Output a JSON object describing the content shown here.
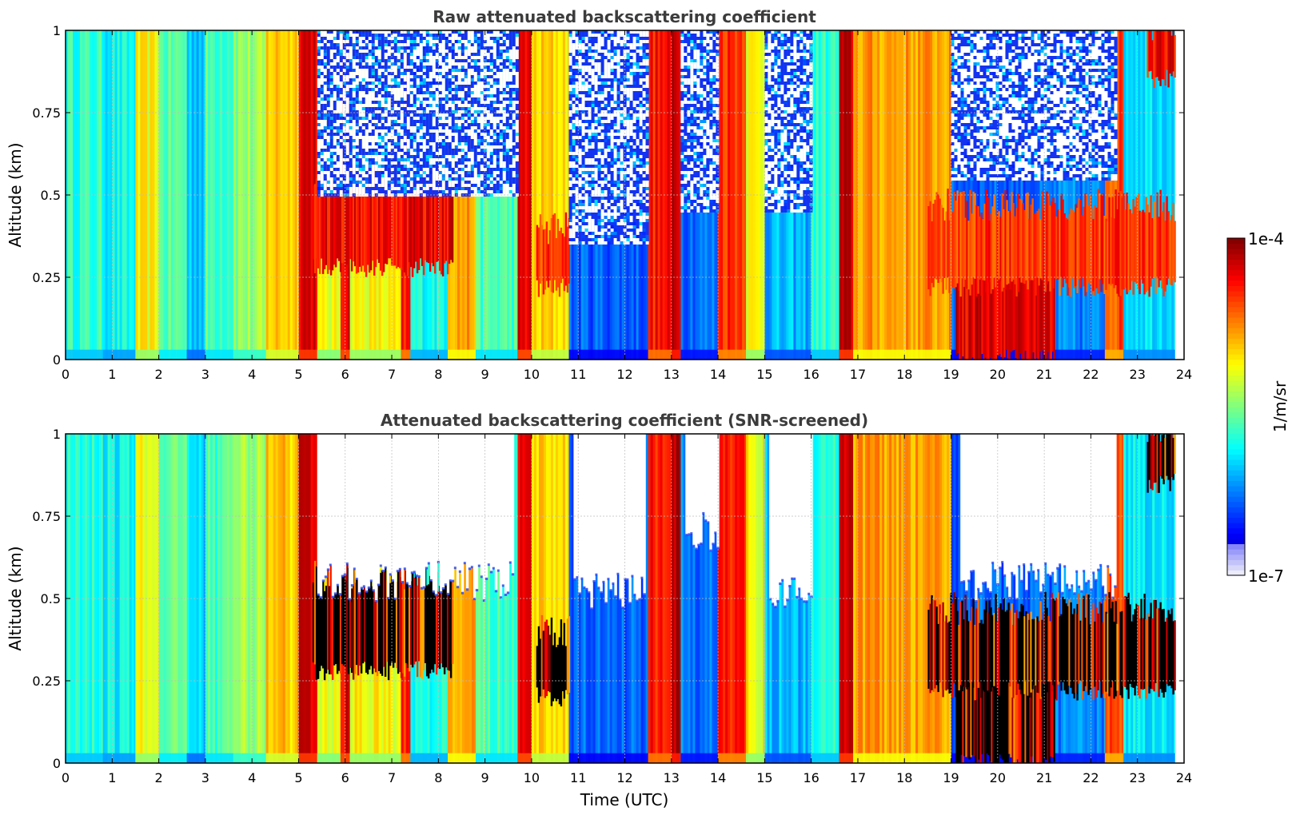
{
  "chart_data": [
    {
      "type": "heatmap",
      "title": "Raw attenuated backscattering coefficient",
      "xlabel": "",
      "ylabel": "Altitude (km)",
      "xlim": [
        0,
        24
      ],
      "ylim": [
        0,
        1
      ],
      "xticks": [
        "0",
        "1",
        "2",
        "3",
        "4",
        "5",
        "6",
        "7",
        "8",
        "9",
        "10",
        "11",
        "12",
        "13",
        "14",
        "15",
        "16",
        "17",
        "18",
        "19",
        "20",
        "21",
        "22",
        "23",
        "24"
      ],
      "yticks": [
        "0",
        "0.25",
        "0.5",
        "0.75",
        "1"
      ],
      "grid": true,
      "screened": false,
      "columns": [
        {
          "t0": 0.0,
          "t1": 0.8,
          "level": 0.42
        },
        {
          "t0": 0.8,
          "t1": 1.5,
          "level": 0.38
        },
        {
          "t0": 1.5,
          "t1": 2.0,
          "level": 0.62
        },
        {
          "t0": 2.0,
          "t1": 2.6,
          "level": 0.46
        },
        {
          "t0": 2.6,
          "t1": 3.0,
          "level": 0.33
        },
        {
          "t0": 3.0,
          "t1": 3.6,
          "level": 0.45
        },
        {
          "t0": 3.6,
          "t1": 4.3,
          "level": 0.52
        },
        {
          "t0": 4.3,
          "t1": 5.0,
          "level": 0.68
        },
        {
          "t0": 5.0,
          "t1": 5.4,
          "level": 0.92
        },
        {
          "t0": 5.4,
          "t1": 5.9,
          "level": 0.6
        },
        {
          "t0": 5.9,
          "t1": 6.1,
          "level": 0.9
        },
        {
          "t0": 6.1,
          "t1": 7.2,
          "level": 0.62
        },
        {
          "t0": 7.2,
          "t1": 7.4,
          "level": 0.85
        },
        {
          "t0": 7.4,
          "t1": 8.2,
          "level": 0.4
        },
        {
          "t0": 8.2,
          "t1": 8.8,
          "level": 0.72
        },
        {
          "t0": 8.8,
          "t1": 9.7,
          "level": 0.45
        },
        {
          "t0": 9.7,
          "t1": 10.0,
          "level": 0.9
        },
        {
          "t0": 10.0,
          "t1": 10.8,
          "level": 0.66
        },
        {
          "t0": 10.8,
          "t1": 12.5,
          "level": 0.22
        },
        {
          "t0": 12.5,
          "t1": 13.0,
          "level": 0.86
        },
        {
          "t0": 13.0,
          "t1": 13.2,
          "level": 0.95
        },
        {
          "t0": 13.2,
          "t1": 14.0,
          "level": 0.24
        },
        {
          "t0": 14.0,
          "t1": 14.6,
          "level": 0.84
        },
        {
          "t0": 14.6,
          "t1": 15.0,
          "level": 0.62
        },
        {
          "t0": 15.0,
          "t1": 16.0,
          "level": 0.3
        },
        {
          "t0": 16.0,
          "t1": 16.6,
          "level": 0.42
        },
        {
          "t0": 16.6,
          "t1": 16.9,
          "level": 0.92
        },
        {
          "t0": 16.9,
          "t1": 19.0,
          "level": 0.72
        },
        {
          "t0": 19.0,
          "t1": 21.2,
          "level": 0.22
        },
        {
          "t0": 21.2,
          "t1": 22.3,
          "level": 0.25
        },
        {
          "t0": 22.3,
          "t1": 22.7,
          "level": 0.8
        },
        {
          "t0": 22.7,
          "t1": 23.8,
          "level": 0.36
        }
      ],
      "layers": [
        {
          "t0": 5.3,
          "t1": 8.3,
          "z0": 0.28,
          "z1": 0.55,
          "level": 0.96
        },
        {
          "t0": 10.1,
          "t1": 10.8,
          "z0": 0.22,
          "z1": 0.38,
          "level": 0.9
        },
        {
          "t0": 19.1,
          "t1": 21.2,
          "z0": 0.0,
          "z1": 0.36,
          "level": 0.98
        },
        {
          "t0": 18.5,
          "t1": 23.8,
          "z0": 0.22,
          "z1": 0.45,
          "level": 0.9
        },
        {
          "t0": 23.2,
          "t1": 23.8,
          "z0": 0.85,
          "z1": 1.0,
          "level": 0.95
        }
      ],
      "noise_regions": [
        {
          "t0": 5.4,
          "t1": 9.7,
          "z0": 0.5,
          "z1": 1.0
        },
        {
          "t0": 10.8,
          "t1": 12.5,
          "z0": 0.35,
          "z1": 1.0
        },
        {
          "t0": 13.2,
          "t1": 14.0,
          "z0": 0.45,
          "z1": 1.0
        },
        {
          "t0": 15.0,
          "t1": 16.0,
          "z0": 0.45,
          "z1": 1.0
        },
        {
          "t0": 19.0,
          "t1": 22.5,
          "z0": 0.55,
          "z1": 1.0
        }
      ]
    },
    {
      "type": "heatmap",
      "title": "Attenuated backscattering coefficient (SNR-screened)",
      "xlabel": "Time (UTC)",
      "ylabel": "Altitude (km)",
      "xlim": [
        0,
        24
      ],
      "ylim": [
        0,
        1
      ],
      "xticks": [
        "0",
        "1",
        "2",
        "3",
        "4",
        "5",
        "6",
        "7",
        "8",
        "9",
        "10",
        "11",
        "12",
        "13",
        "14",
        "15",
        "16",
        "17",
        "18",
        "19",
        "20",
        "21",
        "22",
        "23",
        "24"
      ],
      "yticks": [
        "0",
        "0.25",
        "0.5",
        "0.75",
        "1"
      ],
      "grid": true,
      "screened": true,
      "columns": [
        {
          "t0": 0.0,
          "t1": 0.8,
          "level": 0.42
        },
        {
          "t0": 0.8,
          "t1": 1.5,
          "level": 0.38
        },
        {
          "t0": 1.5,
          "t1": 2.0,
          "level": 0.62
        },
        {
          "t0": 2.0,
          "t1": 2.6,
          "level": 0.46
        },
        {
          "t0": 2.6,
          "t1": 3.0,
          "level": 0.33
        },
        {
          "t0": 3.0,
          "t1": 3.6,
          "level": 0.45
        },
        {
          "t0": 3.6,
          "t1": 4.3,
          "level": 0.52
        },
        {
          "t0": 4.3,
          "t1": 5.0,
          "level": 0.68
        },
        {
          "t0": 5.0,
          "t1": 5.4,
          "level": 0.92
        },
        {
          "t0": 5.4,
          "t1": 5.9,
          "level": 0.6
        },
        {
          "t0": 5.9,
          "t1": 6.1,
          "level": 0.9
        },
        {
          "t0": 6.1,
          "t1": 7.2,
          "level": 0.62
        },
        {
          "t0": 7.2,
          "t1": 7.4,
          "level": 0.85
        },
        {
          "t0": 7.4,
          "t1": 8.2,
          "level": 0.4
        },
        {
          "t0": 8.2,
          "t1": 8.8,
          "level": 0.72
        },
        {
          "t0": 8.8,
          "t1": 9.7,
          "level": 0.45
        },
        {
          "t0": 9.7,
          "t1": 10.0,
          "level": 0.9
        },
        {
          "t0": 10.0,
          "t1": 10.8,
          "level": 0.66
        },
        {
          "t0": 10.8,
          "t1": 12.5,
          "level": 0.22
        },
        {
          "t0": 12.5,
          "t1": 13.0,
          "level": 0.86
        },
        {
          "t0": 13.0,
          "t1": 13.2,
          "level": 0.95
        },
        {
          "t0": 13.2,
          "t1": 14.0,
          "level": 0.24
        },
        {
          "t0": 14.0,
          "t1": 14.6,
          "level": 0.84
        },
        {
          "t0": 14.6,
          "t1": 15.0,
          "level": 0.62
        },
        {
          "t0": 15.0,
          "t1": 16.0,
          "level": 0.3
        },
        {
          "t0": 16.0,
          "t1": 16.6,
          "level": 0.42
        },
        {
          "t0": 16.6,
          "t1": 16.9,
          "level": 0.92
        },
        {
          "t0": 16.9,
          "t1": 19.0,
          "level": 0.72
        },
        {
          "t0": 19.0,
          "t1": 21.2,
          "level": 0.22
        },
        {
          "t0": 21.2,
          "t1": 22.3,
          "level": 0.25
        },
        {
          "t0": 22.3,
          "t1": 22.7,
          "level": 0.8
        },
        {
          "t0": 22.7,
          "t1": 23.8,
          "level": 0.36
        }
      ],
      "layers": [
        {
          "t0": 5.3,
          "t1": 8.3,
          "z0": 0.28,
          "z1": 0.55,
          "level": 1.0
        },
        {
          "t0": 10.1,
          "t1": 10.8,
          "z0": 0.2,
          "z1": 0.38,
          "level": 1.0
        },
        {
          "t0": 19.1,
          "t1": 21.2,
          "z0": 0.0,
          "z1": 0.36,
          "level": 1.0
        },
        {
          "t0": 18.5,
          "t1": 23.8,
          "z0": 0.22,
          "z1": 0.45,
          "level": 1.0
        },
        {
          "t0": 23.2,
          "t1": 23.8,
          "z0": 0.85,
          "z1": 1.0,
          "level": 1.0
        }
      ],
      "screened_regions": [
        {
          "t0": 5.4,
          "t1": 9.6,
          "z0": 0.55,
          "z1": 1.0
        },
        {
          "t0": 10.9,
          "t1": 12.4,
          "z0": 0.52,
          "z1": 1.0
        },
        {
          "t0": 13.3,
          "t1": 14.0,
          "z0": 0.7,
          "z1": 1.0
        },
        {
          "t0": 15.1,
          "t1": 16.0,
          "z0": 0.5,
          "z1": 1.0
        },
        {
          "t0": 19.2,
          "t1": 22.5,
          "z0": 0.55,
          "z1": 1.0
        }
      ]
    }
  ],
  "colorbar": {
    "label": "1/m/sr",
    "max_label": "1e-4",
    "min_label": "1e-7",
    "colormap": "jet"
  }
}
